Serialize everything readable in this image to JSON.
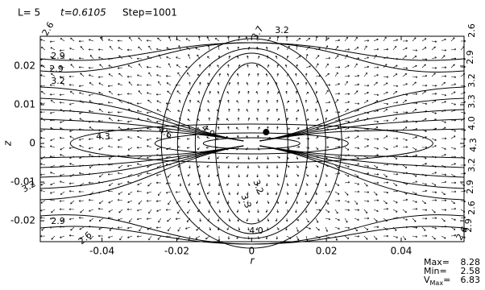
{
  "chart_data": {
    "type": "contour-vector",
    "header": [
      "L=  5",
      "t=0.6105",
      "Step=1001"
    ],
    "x_label": "r",
    "y_label": "z",
    "xlim": [
      -0.0565,
      0.0568
    ],
    "ylim": [
      -0.0254,
      0.0277
    ],
    "xticks": [
      -0.04,
      -0.02,
      0,
      0.02,
      0.04
    ],
    "yticks": [
      -0.02,
      -0.01,
      0,
      0.01,
      0.02
    ],
    "contour_labels": [
      "2.6",
      "2.9",
      "3.2",
      "2.9",
      "4.3",
      "4.6",
      "4.9",
      "3.7",
      "3.2",
      "2.6",
      "2.9",
      "3.2",
      "3.3",
      "4.0",
      "4.3",
      "3.2",
      "2.9",
      "2.6",
      "2.9",
      "3.2",
      "3.3",
      "4.0",
      "3.2",
      "2.6",
      "2.6",
      "2.9"
    ],
    "stats": [
      {
        "label": "Max=",
        "value": 8.28
      },
      {
        "label": "Min=",
        "value": 2.58
      },
      {
        "label": "V",
        "sub": "Max",
        "eq": "=",
        "value": 6.83
      }
    ]
  }
}
